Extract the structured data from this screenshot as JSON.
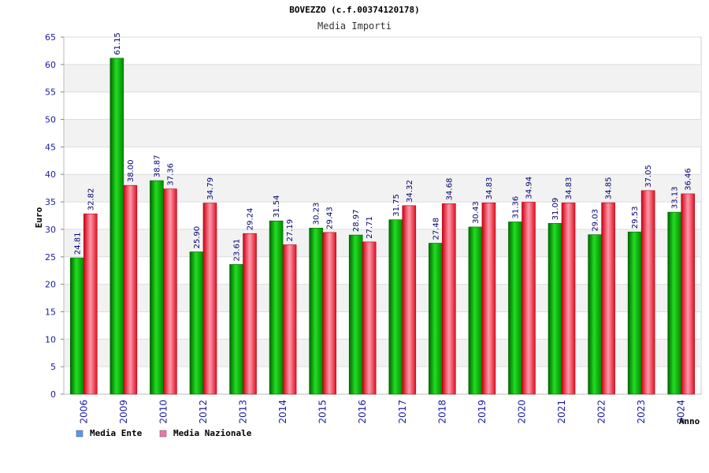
{
  "chart_data": {
    "type": "bar",
    "title": "BOVEZZO (c.f.00374120178)",
    "subtitle": "Media Importi",
    "xlabel": "Anno",
    "ylabel": "Euro",
    "ylim": [
      0,
      65
    ],
    "yticks": [
      0,
      5,
      10,
      15,
      20,
      25,
      30,
      35,
      40,
      45,
      50,
      55,
      60,
      65
    ],
    "grid": true,
    "legend_position": "bottom-left",
    "categories": [
      "2006",
      "2009",
      "2010",
      "2012",
      "2013",
      "2014",
      "2015",
      "2016",
      "2017",
      "2018",
      "2019",
      "2020",
      "2021",
      "2022",
      "2023",
      "2024"
    ],
    "series": [
      {
        "name": "Media Ente",
        "color": "#00aa00",
        "values": [
          24.81,
          61.15,
          38.87,
          25.9,
          23.61,
          31.54,
          30.23,
          28.97,
          31.75,
          27.48,
          30.43,
          31.36,
          31.09,
          29.03,
          29.53,
          33.13
        ],
        "labels": [
          "24.81",
          "61.15",
          "38.87",
          "25.90",
          "23.61",
          "31.54",
          "30.23",
          "28.97",
          "31.75",
          "27.48",
          "30.43",
          "31.36",
          "31.09",
          "29.03",
          "29.53",
          "33.13"
        ]
      },
      {
        "name": "Media Nazionale",
        "color": "#dd1122",
        "values": [
          32.82,
          38.0,
          37.36,
          34.79,
          29.24,
          27.19,
          29.43,
          27.71,
          34.32,
          34.68,
          34.83,
          34.94,
          34.83,
          34.85,
          37.05,
          36.46
        ],
        "labels": [
          "32.82",
          "38.00",
          "37.36",
          "34.79",
          "29.24",
          "27.19",
          "29.43",
          "27.71",
          "34.32",
          "34.68",
          "34.83",
          "34.94",
          "34.83",
          "34.85",
          "37.05",
          "36.46"
        ]
      }
    ],
    "legend_colors": [
      "#5599ee",
      "#ee77aa"
    ]
  }
}
